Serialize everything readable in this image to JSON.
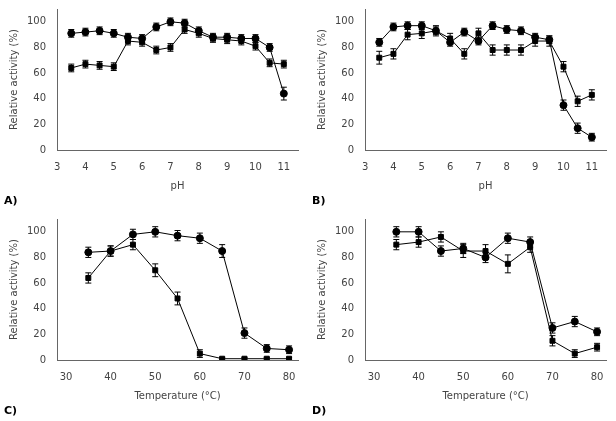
{
  "chart_data": [
    {
      "type": "line",
      "annotations": [
        "A)"
      ],
      "xlabel": "pH",
      "ylabel": "Relative activity (%)",
      "xlim": [
        3,
        11.5
      ],
      "ylim": [
        0,
        110
      ],
      "xticks": [
        3,
        4,
        5,
        6,
        7,
        8,
        9,
        10,
        11
      ],
      "yticks": [
        0,
        20,
        40,
        60,
        80,
        100
      ],
      "grid": false,
      "x": [
        3.5,
        4.0,
        4.5,
        5.0,
        5.5,
        6.0,
        6.5,
        7.0,
        7.5,
        8.0,
        8.5,
        9.0,
        9.5,
        10.0,
        10.5,
        11.0
      ],
      "series": [
        {
          "marker": "square",
          "line_style": "solid",
          "color": "black",
          "values": [
            64,
            67,
            66,
            65,
            85,
            84,
            78,
            80,
            94,
            91,
            87,
            86,
            85,
            81,
            68,
            67
          ],
          "errors": [
            3,
            3,
            3,
            3,
            3,
            3,
            3,
            3,
            3,
            3,
            3,
            3,
            3,
            3,
            3,
            3
          ]
        },
        {
          "marker": "circle",
          "line_style": "solid",
          "color": "black",
          "values": [
            91,
            92,
            93,
            91,
            88,
            87,
            96,
            100,
            99,
            93,
            88,
            88,
            87,
            87,
            80,
            44
          ],
          "errors": [
            3,
            3,
            3,
            3,
            3,
            3,
            3,
            3,
            3,
            3,
            3,
            3,
            3,
            3,
            3,
            5
          ]
        }
      ]
    },
    {
      "type": "line",
      "annotations": [
        "B)"
      ],
      "xlabel": "pH",
      "ylabel": "Relative activity (%)",
      "xlim": [
        3,
        11.5
      ],
      "ylim": [
        0,
        110
      ],
      "xticks": [
        3,
        4,
        5,
        6,
        7,
        8,
        9,
        10,
        11
      ],
      "yticks": [
        0,
        20,
        40,
        60,
        80,
        100
      ],
      "grid": false,
      "x": [
        3.5,
        4.0,
        4.5,
        5.0,
        5.5,
        6.0,
        6.5,
        7.0,
        7.5,
        8.0,
        8.5,
        9.0,
        9.5,
        10.0,
        10.5,
        11.0
      ],
      "series": [
        {
          "marker": "square",
          "line_style": "solid",
          "color": "black",
          "values": [
            72,
            75,
            90,
            91,
            93,
            87,
            75,
            91,
            78,
            78,
            78,
            85,
            85,
            65,
            38,
            43
          ],
          "errors": [
            5,
            4,
            4,
            4,
            4,
            4,
            4,
            4,
            4,
            4,
            4,
            4,
            4,
            4,
            4,
            4
          ]
        },
        {
          "marker": "circle",
          "line_style": "solid",
          "color": "black",
          "values": [
            84,
            96,
            97,
            97,
            93,
            84,
            92,
            85,
            97,
            94,
            93,
            88,
            86,
            35,
            17,
            10
          ],
          "errors": [
            3,
            3,
            3,
            3,
            3,
            3,
            3,
            3,
            3,
            3,
            3,
            3,
            3,
            4,
            4,
            3
          ]
        }
      ]
    },
    {
      "type": "line",
      "annotations": [
        "C)"
      ],
      "xlabel": "Temperature (°C)",
      "ylabel": "Relative activity (%)",
      "xlim": [
        28,
        82
      ],
      "ylim": [
        0,
        110
      ],
      "xticks": [
        30,
        40,
        50,
        60,
        70,
        80
      ],
      "yticks": [
        0,
        20,
        40,
        60,
        80,
        100
      ],
      "grid": false,
      "x": [
        35,
        40,
        45,
        50,
        55,
        60,
        65,
        70,
        75,
        80
      ],
      "series": [
        {
          "marker": "square",
          "line_style": "solid",
          "color": "black",
          "values": [
            64,
            85,
            90,
            70,
            48,
            5,
            1,
            1,
            1,
            1
          ],
          "errors": [
            4,
            4,
            4,
            5,
            5,
            3,
            1,
            1,
            1,
            1
          ]
        },
        {
          "marker": "circle",
          "line_style": "solid",
          "color": "black",
          "values": [
            84,
            85,
            98,
            100,
            97,
            95,
            85,
            21,
            9,
            8
          ],
          "errors": [
            4,
            4,
            4,
            4,
            4,
            4,
            5,
            4,
            3,
            3
          ]
        }
      ]
    },
    {
      "type": "line",
      "annotations": [
        "D)"
      ],
      "xlabel": "Temperature (°C)",
      "ylabel": "Relative activity (%)",
      "xlim": [
        28,
        82
      ],
      "ylim": [
        0,
        110
      ],
      "xticks": [
        30,
        40,
        50,
        60,
        70,
        80
      ],
      "yticks": [
        0,
        20,
        40,
        60,
        80,
        100
      ],
      "grid": false,
      "x": [
        35,
        40,
        45,
        50,
        55,
        60,
        65,
        70,
        75,
        80
      ],
      "series": [
        {
          "marker": "square",
          "line_style": "solid",
          "color": "black",
          "values": [
            90,
            92,
            96,
            85,
            85,
            75,
            88,
            15,
            5,
            10
          ],
          "errors": [
            4,
            4,
            4,
            5,
            5,
            7,
            4,
            4,
            3,
            3
          ]
        },
        {
          "marker": "circle",
          "line_style": "solid",
          "color": "black",
          "values": [
            100,
            100,
            85,
            87,
            80,
            95,
            92,
            25,
            30,
            22
          ],
          "errors": [
            4,
            4,
            4,
            4,
            4,
            4,
            4,
            4,
            4,
            3
          ]
        }
      ]
    }
  ]
}
